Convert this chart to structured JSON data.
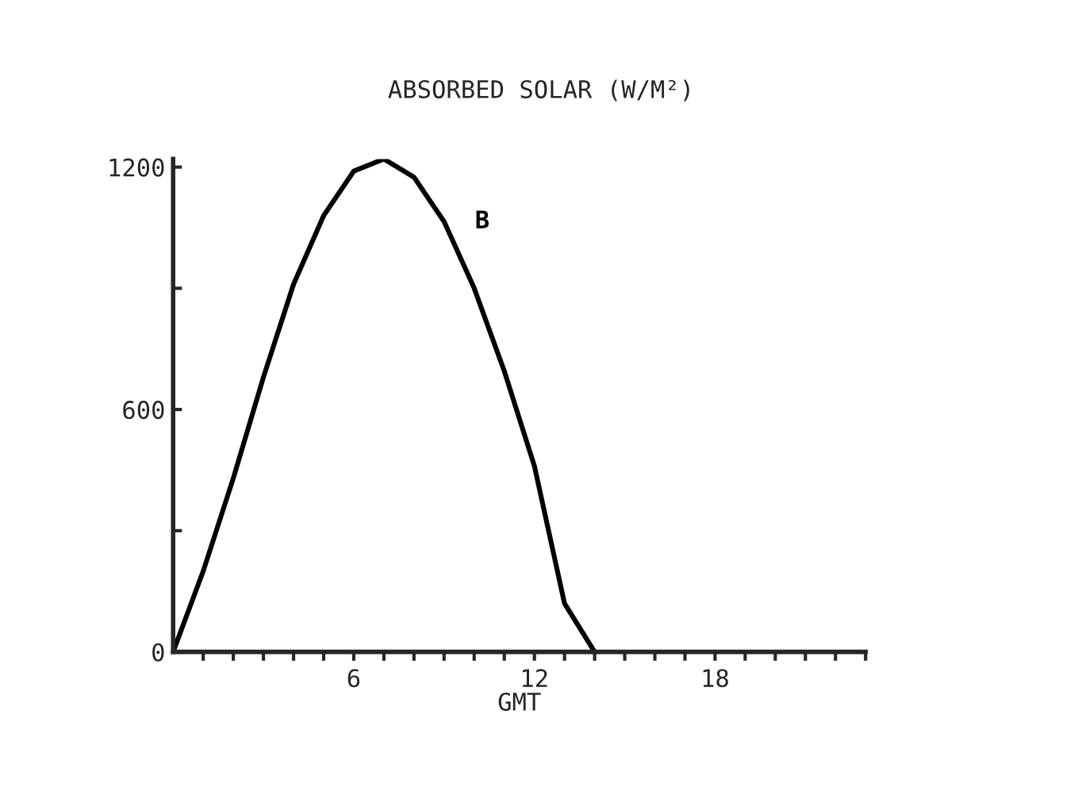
{
  "chart_data": {
    "type": "line",
    "title": "ABSORBED SOLAR (W/M²)",
    "xlabel": "GMT",
    "x": [
      0,
      1,
      2,
      3,
      4,
      5,
      6,
      7,
      8,
      9,
      10,
      11,
      12,
      13,
      14
    ],
    "series": [
      {
        "name": "B",
        "color": "#000000",
        "values": [
          0,
          200,
          430,
          680,
          910,
          1080,
          1190,
          1220,
          1175,
          1065,
          900,
          695,
          460,
          120,
          0
        ]
      }
    ],
    "xlim": [
      0,
      23
    ],
    "ylim": [
      0,
      1220
    ],
    "xticks": [
      {
        "value": 1,
        "label": null
      },
      {
        "value": 2,
        "label": null
      },
      {
        "value": 3,
        "label": null
      },
      {
        "value": 4,
        "label": null
      },
      {
        "value": 5,
        "label": null
      },
      6,
      {
        "value": 7,
        "label": null
      },
      {
        "value": 8,
        "label": null
      },
      {
        "value": 9,
        "label": null
      },
      {
        "value": 10,
        "label": null
      },
      {
        "value": 11,
        "label": null
      },
      12,
      {
        "value": 13,
        "label": null
      },
      {
        "value": 14,
        "label": null
      },
      {
        "value": 15,
        "label": null
      },
      {
        "value": 16,
        "label": null
      },
      {
        "value": 17,
        "label": null
      },
      18,
      {
        "value": 19,
        "label": null
      },
      {
        "value": 20,
        "label": null
      },
      {
        "value": 21,
        "label": null
      },
      {
        "value": 22,
        "label": null
      },
      {
        "value": 23,
        "label": null
      }
    ],
    "yticks": [
      0,
      {
        "value": 300,
        "label": null
      },
      600,
      {
        "value": 900,
        "label": null
      },
      1200
    ],
    "grid": false,
    "legend": false,
    "marker": "none",
    "line_style": "solid"
  }
}
